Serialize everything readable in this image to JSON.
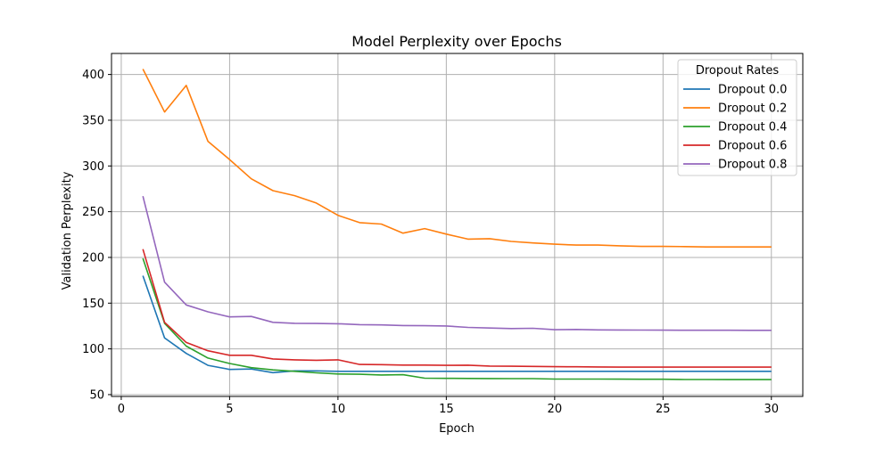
{
  "chart_data": {
    "type": "line",
    "title": "Model Perplexity over Epochs",
    "xlabel": "Epoch",
    "ylabel": "Validation Perplexity",
    "xlim": [
      -0.45,
      31.45
    ],
    "ylim": [
      48,
      423
    ],
    "xticks": [
      0,
      5,
      10,
      15,
      20,
      25,
      30
    ],
    "yticks": [
      50,
      100,
      150,
      200,
      250,
      300,
      350,
      400
    ],
    "grid": true,
    "legend": {
      "title": "Dropout Rates",
      "placement": "top-right"
    },
    "x": [
      1,
      2,
      3,
      4,
      5,
      6,
      7,
      8,
      9,
      10,
      11,
      12,
      13,
      14,
      15,
      16,
      17,
      18,
      19,
      20,
      21,
      22,
      23,
      24,
      25,
      26,
      27,
      28,
      29,
      30
    ],
    "series": [
      {
        "name": "Dropout 0.0",
        "color": "#1f77b4",
        "values": [
          180,
          112,
          95,
          82,
          77.5,
          78,
          74,
          76,
          76,
          75.5,
          75.5,
          75.5,
          75.5,
          75.5,
          75.5,
          75.5,
          75.5,
          75.5,
          75.5,
          75.5,
          75.5,
          75.5,
          75.5,
          75.5,
          75.5,
          75.5,
          75.5,
          75.5,
          75.5,
          75.5
        ]
      },
      {
        "name": "Dropout 0.2",
        "color": "#ff7f0e",
        "values": [
          406,
          359,
          388,
          327,
          307,
          286,
          273,
          267.5,
          259.5,
          246,
          238,
          236.5,
          226.5,
          231.5,
          225.5,
          220,
          220.5,
          217.5,
          215.8,
          214.5,
          213.5,
          213.5,
          212.7,
          212,
          212,
          211.8,
          211.4,
          211.4,
          211.4,
          211.4
        ]
      },
      {
        "name": "Dropout 0.4",
        "color": "#2ca02c",
        "values": [
          199,
          128,
          103,
          90,
          84,
          79.5,
          77,
          75.5,
          73.8,
          72.5,
          72.3,
          71.5,
          71.8,
          68,
          67.8,
          67.7,
          67.6,
          67.5,
          67.5,
          67,
          67,
          67,
          66.9,
          66.8,
          66.8,
          66.5,
          66.5,
          66.4,
          66.4,
          66.4
        ]
      },
      {
        "name": "Dropout 0.6",
        "color": "#d62728",
        "values": [
          209,
          129,
          107,
          98,
          93,
          93,
          89,
          88,
          87.5,
          88,
          83,
          82.8,
          82.3,
          82.3,
          82,
          82.2,
          81.2,
          81,
          80.8,
          80.5,
          80.4,
          80.2,
          80,
          80,
          80,
          80,
          80,
          80,
          80,
          80
        ]
      },
      {
        "name": "Dropout 0.8",
        "color": "#9467bd",
        "values": [
          267,
          173,
          148,
          140.5,
          135,
          135.5,
          129,
          128,
          127.8,
          127.5,
          126.5,
          126.2,
          125.5,
          125.3,
          125,
          123.5,
          122.8,
          122.2,
          122.5,
          121,
          121.2,
          120.8,
          120.7,
          120.6,
          120.5,
          120.4,
          120.4,
          120.4,
          120.3,
          120.3
        ]
      }
    ]
  }
}
